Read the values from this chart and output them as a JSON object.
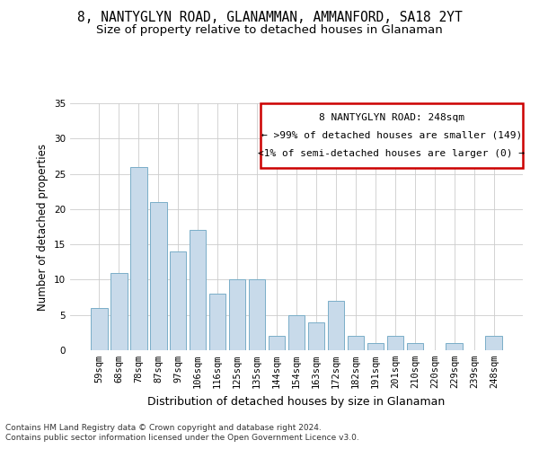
{
  "title": "8, NANTYGLYN ROAD, GLANAMMAN, AMMANFORD, SA18 2YT",
  "subtitle": "Size of property relative to detached houses in Glanaman",
  "xlabel": "Distribution of detached houses by size in Glanaman",
  "ylabel": "Number of detached properties",
  "categories": [
    "59sqm",
    "68sqm",
    "78sqm",
    "87sqm",
    "97sqm",
    "106sqm",
    "116sqm",
    "125sqm",
    "135sqm",
    "144sqm",
    "154sqm",
    "163sqm",
    "172sqm",
    "182sqm",
    "191sqm",
    "201sqm",
    "210sqm",
    "220sqm",
    "229sqm",
    "239sqm",
    "248sqm"
  ],
  "values": [
    6,
    11,
    26,
    21,
    14,
    17,
    8,
    10,
    10,
    2,
    5,
    4,
    7,
    2,
    1,
    2,
    1,
    0,
    1,
    0,
    2
  ],
  "bar_color": "#c8daea",
  "bar_edge_color": "#7aaec8",
  "grid_color": "#cccccc",
  "annotation_box_color": "#cc0000",
  "annotation_line1": "8 NANTYGLYN ROAD: 248sqm",
  "annotation_line2": "← >99% of detached houses are smaller (149)",
  "annotation_line3": "<1% of semi-detached houses are larger (0) →",
  "ylim": [
    0,
    35
  ],
  "yticks": [
    0,
    5,
    10,
    15,
    20,
    25,
    30,
    35
  ],
  "footer1": "Contains HM Land Registry data © Crown copyright and database right 2024.",
  "footer2": "Contains public sector information licensed under the Open Government Licence v3.0.",
  "title_fontsize": 10.5,
  "subtitle_fontsize": 9.5,
  "xlabel_fontsize": 9,
  "ylabel_fontsize": 8.5,
  "tick_fontsize": 7.5,
  "annotation_fontsize": 8,
  "footer_fontsize": 6.5
}
